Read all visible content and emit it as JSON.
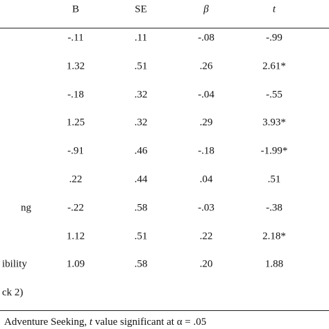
{
  "table": {
    "header": [
      "B",
      "SE",
      "β",
      "t"
    ],
    "rows": [
      {
        "cells": [
          "-.11",
          ".11",
          "-.08",
          "-.99"
        ]
      },
      {
        "cells": [
          "1.32",
          ".51",
          ".26",
          "2.61*"
        ]
      },
      {
        "cells": [
          "-.18",
          ".32",
          "-.04",
          "-.55"
        ]
      },
      {
        "cells": [
          "1.25",
          ".32",
          ".29",
          "3.93*"
        ]
      },
      {
        "cells": [
          "-.91",
          ".46",
          "-.18",
          "-1.99*"
        ]
      },
      {
        "cells": [
          ".22",
          ".44",
          ".04",
          ".51"
        ]
      },
      {
        "label": "ng",
        "cells": [
          "-.22",
          ".58",
          "-.03",
          "-.38"
        ]
      },
      {
        "cells": [
          "1.12",
          ".51",
          ".22",
          "2.18*"
        ]
      },
      {
        "label": "ibility",
        "cells": [
          "1.09",
          ".58",
          ".20",
          "1.88"
        ]
      },
      {
        "label": "ck 2)"
      }
    ],
    "footnote": [
      "Adventure Seeking,",
      "t",
      "value significant at α = .05"
    ]
  }
}
